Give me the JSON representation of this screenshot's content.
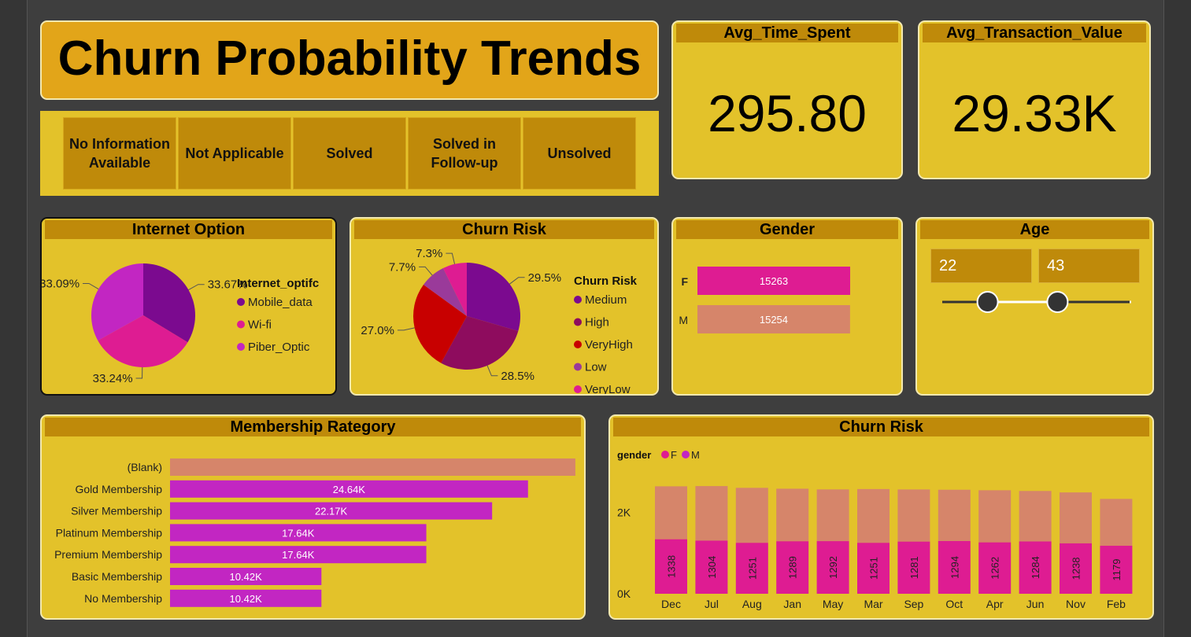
{
  "title": "Churn Probability Trends",
  "status_filters": [
    "No Information Available",
    "Not Applicable",
    "Solved",
    "Solved in Follow-up",
    "Unsolved"
  ],
  "kpis": {
    "avg_time_spent": {
      "label": "Avg_Time_Spent",
      "value": "295.80"
    },
    "avg_transaction_value": {
      "label": "Avg_Transaction_Value",
      "value": "29.33K"
    }
  },
  "internet_option": {
    "title": "Internet Option",
    "legend_title": "Internet_optifc",
    "chart_data": {
      "type": "pie",
      "labels": [
        "Mobile_data",
        "Wi-fi",
        "Piber_Optic"
      ],
      "values": [
        33.67,
        33.24,
        33.09
      ],
      "value_labels": [
        "33.67%",
        "33.24%",
        "33.09%"
      ],
      "colors": [
        "#7b0a8f",
        "#de1c92",
        "#c226c2"
      ]
    }
  },
  "churn_risk_pie": {
    "title": "Churn Risk",
    "legend_title": "Churn Risk",
    "chart_data": {
      "type": "pie",
      "labels": [
        "Medium",
        "High",
        "VeryHigh",
        "Low",
        "VeryLow"
      ],
      "values": [
        29.5,
        28.5,
        27.0,
        7.7,
        7.3
      ],
      "value_labels": [
        "29.5%",
        "28.5%",
        "27.0%",
        "7.7%",
        "7.3%"
      ],
      "colors": [
        "#7b0a8f",
        "#8e0c5e",
        "#c80000",
        "#9a3a9a",
        "#de1c92"
      ]
    }
  },
  "gender": {
    "title": "Gender",
    "chart_data": {
      "type": "bar",
      "categories": [
        "F",
        "M"
      ],
      "values": [
        15263,
        15254
      ],
      "value_labels": [
        "15263",
        "15254"
      ],
      "colors": [
        "#de1c92",
        "#d6856a"
      ]
    }
  },
  "age": {
    "title": "Age",
    "min_value": "22",
    "max_value": "43",
    "slider_low_fraction": 0.24,
    "slider_high_fraction": 0.61
  },
  "membership": {
    "title": "Membership Rategory",
    "chart_data": {
      "type": "bar",
      "categories": [
        "(Blank)",
        "Gold Membership",
        "Silver Membership",
        "Platinum Membership",
        "Premium Membership",
        "Basic Membership",
        "No Membership"
      ],
      "values": [
        27900,
        24640,
        22170,
        17640,
        17640,
        10420,
        10420
      ],
      "value_labels": [
        "",
        "24.64K",
        "22.17K",
        "17.64K",
        "17.64K",
        "10.42K",
        "10.42K"
      ],
      "xlim": [
        0,
        28500
      ],
      "colors": [
        "#d6856a",
        "#c226c2",
        "#c226c2",
        "#c226c2",
        "#c226c2",
        "#c226c2",
        "#c226c2"
      ]
    }
  },
  "churn_risk_month": {
    "title": "Churn Risk",
    "legend_title": "gender",
    "chart_data": {
      "type": "bar",
      "stacked": true,
      "categories": [
        "Dec",
        "Jul",
        "Aug",
        "Jan",
        "May",
        "Mar",
        "Sep",
        "Oct",
        "Apr",
        "Jun",
        "Nov",
        "Feb"
      ],
      "series": [
        {
          "name": "F",
          "values": [
            1338,
            1304,
            1251,
            1289,
            1292,
            1251,
            1281,
            1294,
            1262,
            1284,
            1238,
            1179
          ],
          "color": "#de1c92"
        },
        {
          "name": "M",
          "values": [
            1300,
            1340,
            1350,
            1290,
            1270,
            1320,
            1280,
            1260,
            1280,
            1240,
            1250,
            1150
          ],
          "color": "#d6856a"
        }
      ],
      "value_labels": [
        "1338",
        "1304",
        "1251",
        "1289",
        "1292",
        "1251",
        "1281",
        "1294",
        "1262",
        "1284",
        "1238",
        "1179"
      ],
      "yticks": [
        "0K",
        "2K"
      ],
      "ylim": [
        0,
        2800
      ]
    }
  }
}
